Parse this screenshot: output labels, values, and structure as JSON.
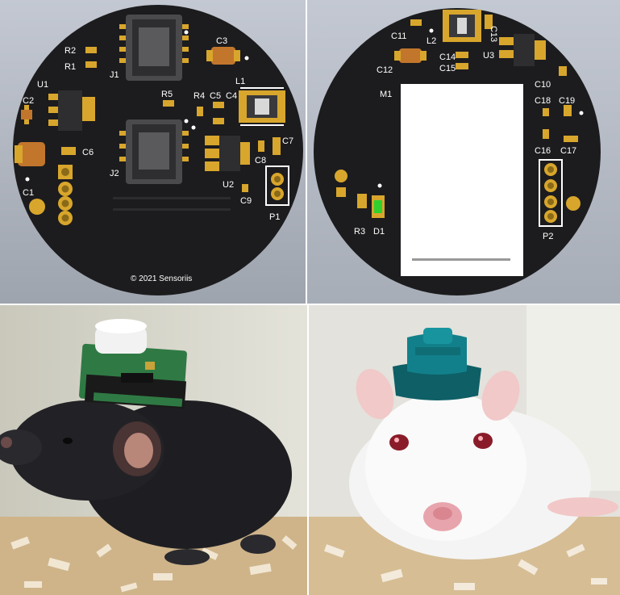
{
  "colors": {
    "board": "#1c1c1e",
    "pad": "#d8a62c",
    "label": "#ffffff",
    "led": "#2ed12e",
    "module": "#ffffff"
  },
  "left_board": {
    "labels": {
      "r2": "R2",
      "r1": "R1",
      "j1": "J1",
      "c3": "C3",
      "l1": "L1",
      "u1": "U1",
      "r5": "R5",
      "r4": "R4",
      "c5": "C5",
      "c4": "C4",
      "c2": "C2",
      "c6": "C6",
      "c7": "C7",
      "c1": "C1",
      "j2": "J2",
      "c8": "C8",
      "u2": "U2",
      "c9": "C9",
      "p1": "P1"
    },
    "copyright": "© 2021 Sensoriis"
  },
  "right_board": {
    "labels": {
      "c11": "C11",
      "l2": "L2",
      "c13": "C13",
      "c14": "C14",
      "u3": "U3",
      "c12": "C12",
      "c15": "C15",
      "c10": "C10",
      "m1": "M1",
      "c18": "C18",
      "c19": "C19",
      "c16": "C16",
      "c17": "C17",
      "r3": "R3",
      "d1": "D1",
      "p2": "P2"
    }
  },
  "photos": {
    "left_subject": "black-mouse",
    "right_subject": "white-rat"
  }
}
